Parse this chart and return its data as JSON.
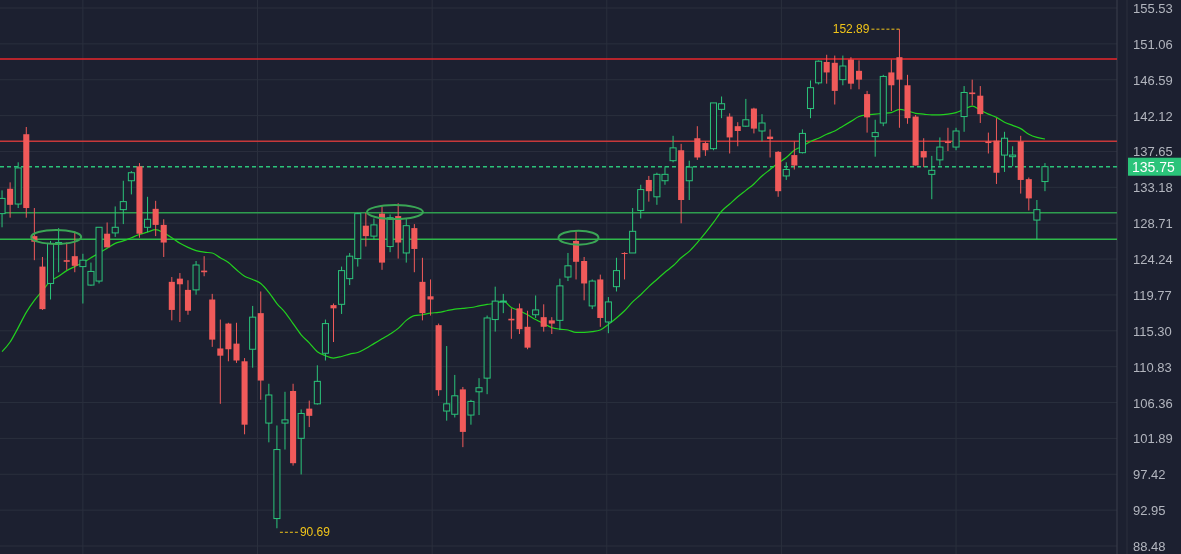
{
  "chart_data": {
    "type": "candlestick",
    "categories": [
      null,
      null,
      null,
      null,
      null,
      null,
      null,
      null,
      null,
      null,
      null,
      null,
      null,
      null,
      null,
      null,
      null,
      null,
      null,
      null,
      null,
      null,
      null,
      null,
      null,
      null,
      null,
      null,
      null,
      null,
      null,
      null,
      null,
      null,
      null,
      null,
      null,
      null,
      null,
      null,
      null,
      null,
      null,
      null,
      null,
      null,
      null,
      null,
      null,
      null,
      null,
      null,
      null,
      null,
      null,
      null,
      null,
      null,
      null,
      null,
      null,
      null,
      null,
      null,
      null,
      null,
      null,
      null,
      null,
      null,
      null,
      null,
      null,
      null,
      null,
      null,
      null,
      null,
      null,
      null,
      null,
      null,
      null,
      null,
      null,
      null,
      null,
      null,
      null,
      null,
      null,
      null,
      null,
      null,
      null,
      null,
      null,
      null,
      null,
      null,
      null,
      null,
      null,
      null,
      null,
      null,
      null,
      null,
      null,
      null,
      null,
      null,
      null,
      null,
      null,
      null,
      null,
      null,
      null,
      null,
      null,
      null,
      null,
      null,
      null,
      null,
      null,
      null,
      null,
      null
    ],
    "ohlc": [
      [
        129.9,
        132.8,
        128.2,
        131.8
      ],
      [
        133.0,
        133.8,
        129.4,
        131.0
      ],
      [
        131.1,
        136.3,
        130.6,
        135.6
      ],
      [
        139.8,
        140.7,
        129.4,
        130.6
      ],
      [
        127.1,
        130.6,
        124.1,
        126.4
      ],
      [
        123.3,
        124.5,
        117.9,
        118.0
      ],
      [
        121.2,
        126.5,
        119.2,
        126.2
      ],
      [
        126.1,
        128.1,
        122.6,
        126.3
      ],
      [
        124.1,
        126.3,
        122.9,
        123.9
      ],
      [
        124.6,
        127.7,
        122.6,
        123.4
      ],
      [
        123.3,
        124.9,
        118.7,
        124.1
      ],
      [
        121.0,
        123.8,
        120.9,
        122.7
      ],
      [
        121.5,
        128.2,
        121.2,
        128.2
      ],
      [
        127.4,
        128.8,
        125.7,
        125.7
      ],
      [
        127.5,
        130.8,
        127.0,
        128.2
      ],
      [
        130.4,
        134.0,
        128.6,
        131.4
      ],
      [
        134.0,
        135.2,
        132.3,
        135.0
      ],
      [
        135.8,
        136.2,
        126.9,
        127.4
      ],
      [
        128.2,
        132.0,
        127.6,
        129.2
      ],
      [
        130.5,
        131.5,
        127.1,
        128.5
      ],
      [
        128.5,
        129.2,
        124.5,
        126.3
      ],
      [
        121.4,
        122.0,
        116.6,
        117.9
      ],
      [
        121.8,
        122.5,
        116.4,
        121.1
      ],
      [
        120.4,
        121.6,
        117.3,
        117.8
      ],
      [
        120.4,
        124.0,
        119.8,
        123.5
      ],
      [
        122.8,
        124.6,
        122.1,
        122.6
      ],
      [
        119.2,
        119.9,
        113.3,
        114.2
      ],
      [
        113.1,
        116.7,
        106.2,
        112.2
      ],
      [
        116.2,
        116.3,
        111.5,
        113.0
      ],
      [
        113.7,
        116.3,
        111.3,
        111.6
      ],
      [
        111.5,
        111.9,
        102.4,
        103.6
      ],
      [
        113.0,
        118.4,
        110.7,
        117.0
      ],
      [
        117.5,
        120.2,
        106.7,
        109.1
      ],
      [
        103.8,
        108.7,
        101.4,
        107.3
      ],
      [
        91.9,
        103.5,
        90.69,
        100.5
      ],
      [
        103.8,
        107.7,
        100.5,
        104.2
      ],
      [
        107.8,
        108.7,
        98.5,
        98.8
      ],
      [
        101.9,
        105.5,
        97.4,
        105.0
      ],
      [
        105.6,
        106.6,
        103.3,
        104.7
      ],
      [
        106.2,
        111.0,
        106.1,
        109.0
      ],
      [
        112.5,
        116.7,
        111.6,
        116.2
      ],
      [
        118.5,
        118.7,
        113.9,
        118.1
      ],
      [
        118.6,
        123.3,
        117.4,
        122.8
      ],
      [
        121.8,
        125.0,
        121.0,
        124.6
      ],
      [
        124.3,
        130.0,
        123.3,
        129.9
      ],
      [
        128.4,
        130.0,
        125.8,
        127.1
      ],
      [
        127.1,
        129.3,
        126.7,
        128.5
      ],
      [
        129.9,
        130.8,
        122.9,
        123.8
      ],
      [
        125.8,
        129.8,
        125.1,
        129.4
      ],
      [
        129.6,
        131.2,
        124.3,
        126.3
      ],
      [
        125.0,
        129.3,
        123.8,
        128.4
      ],
      [
        128.1,
        128.6,
        122.6,
        125.5
      ],
      [
        121.4,
        124.4,
        116.6,
        117.5
      ],
      [
        119.6,
        121.7,
        117.2,
        119.2
      ],
      [
        116.0,
        116.2,
        107.2,
        107.9
      ],
      [
        105.3,
        113.4,
        104.1,
        106.2
      ],
      [
        104.9,
        109.8,
        104.5,
        107.2
      ],
      [
        108.0,
        108.3,
        100.8,
        102.7
      ],
      [
        104.8,
        106.7,
        103.6,
        106.5
      ],
      [
        107.7,
        109.4,
        104.8,
        108.2
      ],
      [
        109.4,
        117.2,
        107.4,
        116.9
      ],
      [
        116.7,
        120.8,
        115.2,
        119.0
      ],
      [
        118.9,
        119.9,
        117.5,
        119.0
      ],
      [
        116.8,
        118.1,
        114.3,
        116.6
      ],
      [
        118.1,
        118.7,
        114.9,
        115.5
      ],
      [
        115.8,
        117.8,
        113.0,
        113.2
      ],
      [
        117.3,
        119.7,
        116.9,
        117.9
      ],
      [
        117.0,
        118.6,
        115.2,
        115.8
      ],
      [
        116.6,
        117.0,
        114.9,
        116.2
      ],
      [
        116.6,
        121.8,
        115.4,
        120.9
      ],
      [
        122.0,
        125.0,
        121.5,
        123.4
      ],
      [
        126.5,
        127.7,
        121.7,
        123.9
      ],
      [
        124.0,
        124.5,
        119.1,
        121.2
      ],
      [
        118.4,
        121.7,
        118.0,
        121.5
      ],
      [
        121.7,
        122.3,
        115.8,
        116.9
      ],
      [
        116.4,
        119.5,
        115.0,
        118.9
      ],
      [
        120.8,
        124.4,
        120.2,
        122.8
      ],
      [
        125.0,
        125.1,
        121.7,
        124.9
      ],
      [
        125.0,
        130.6,
        125.0,
        127.7
      ],
      [
        130.3,
        133.5,
        129.3,
        132.9
      ],
      [
        134.1,
        134.6,
        131.4,
        132.7
      ],
      [
        132.0,
        135.0,
        131.0,
        134.8
      ],
      [
        134.0,
        135.8,
        133.5,
        134.8
      ],
      [
        136.5,
        139.6,
        136.3,
        138.1
      ],
      [
        137.8,
        138.6,
        128.7,
        131.6
      ],
      [
        134.0,
        136.5,
        131.6,
        135.7
      ],
      [
        139.3,
        140.8,
        136.6,
        136.9
      ],
      [
        138.7,
        138.9,
        137.1,
        137.8
      ],
      [
        138.0,
        143.7,
        137.8,
        143.7
      ],
      [
        142.9,
        144.5,
        141.8,
        143.6
      ],
      [
        142.0,
        142.4,
        137.4,
        139.4
      ],
      [
        140.8,
        141.3,
        138.3,
        140.2
      ],
      [
        140.8,
        144.2,
        140.7,
        141.6
      ],
      [
        143.0,
        143.1,
        139.9,
        140.5
      ],
      [
        140.2,
        142.3,
        138.9,
        141.2
      ],
      [
        139.5,
        140.4,
        136.9,
        139.2
      ],
      [
        137.6,
        137.7,
        132.0,
        132.7
      ],
      [
        134.6,
        136.3,
        134.1,
        135.4
      ],
      [
        137.2,
        138.9,
        135.4,
        135.9
      ],
      [
        137.5,
        140.4,
        137.4,
        139.9
      ],
      [
        143.0,
        146.5,
        141.8,
        145.6
      ],
      [
        146.2,
        149.0,
        146.0,
        148.9
      ],
      [
        148.8,
        149.7,
        146.1,
        147.5
      ],
      [
        148.7,
        149.6,
        143.5,
        145.2
      ],
      [
        146.6,
        149.6,
        145.9,
        148.3
      ],
      [
        149.1,
        149.4,
        145.4,
        146.1
      ],
      [
        147.7,
        149.0,
        145.4,
        146.6
      ],
      [
        144.8,
        145.2,
        140.0,
        141.9
      ],
      [
        139.5,
        141.6,
        137.0,
        140.0
      ],
      [
        141.2,
        147.2,
        140.8,
        147.0
      ],
      [
        147.5,
        149.1,
        142.7,
        145.9
      ],
      [
        149.4,
        152.89,
        140.6,
        146.6
      ],
      [
        145.9,
        147.2,
        141.1,
        141.8
      ],
      [
        142.0,
        142.2,
        135.9,
        135.9
      ],
      [
        137.7,
        139.3,
        135.7,
        136.9
      ],
      [
        134.8,
        137.1,
        131.7,
        135.3
      ],
      [
        136.6,
        139.4,
        135.9,
        138.2
      ],
      [
        138.9,
        140.6,
        137.7,
        138.7
      ],
      [
        138.2,
        140.6,
        137.8,
        140.2
      ],
      [
        142.0,
        145.8,
        140.1,
        145.0
      ],
      [
        145.0,
        146.6,
        143.4,
        144.8
      ],
      [
        144.6,
        145.8,
        141.2,
        142.3
      ],
      [
        138.9,
        140.0,
        137.4,
        138.7
      ],
      [
        139.0,
        141.8,
        133.6,
        135.0
      ],
      [
        137.2,
        140.1,
        135.1,
        139.3
      ],
      [
        137.0,
        138.3,
        135.8,
        137.2
      ],
      [
        138.9,
        139.6,
        132.4,
        134.1
      ],
      [
        134.2,
        134.4,
        130.3,
        131.8
      ],
      [
        129.1,
        131.6,
        126.7,
        130.4
      ],
      [
        133.9,
        136.2,
        132.7,
        135.75
      ]
    ],
    "colors": [
      "#2bc47a",
      "#f05a5a",
      "#2bc47a",
      "#f05a5a",
      "#f05a5a",
      "#f05a5a",
      "#2bc47a",
      "#2bc47a",
      "#f05a5a",
      "#f05a5a",
      "#2bc47a",
      "#2bc47a",
      "#2bc47a",
      "#f05a5a",
      "#2bc47a",
      "#2bc47a",
      "#2bc47a",
      "#f05a5a",
      "#2bc47a",
      "#f05a5a",
      "#f05a5a",
      "#f05a5a",
      "#f05a5a",
      "#f05a5a",
      "#2bc47a",
      "#f05a5a",
      "#f05a5a",
      "#f05a5a",
      "#f05a5a",
      "#f05a5a",
      "#f05a5a",
      "#2bc47a",
      "#f05a5a",
      "#2bc47a",
      "#2bc47a",
      "#2bc47a",
      "#f05a5a",
      "#2bc47a",
      "#f05a5a",
      "#2bc47a",
      "#2bc47a",
      "#f05a5a",
      "#2bc47a",
      "#2bc47a",
      "#2bc47a",
      "#f05a5a",
      "#2bc47a",
      "#f05a5a",
      "#2bc47a",
      "#f05a5a",
      "#2bc47a",
      "#f05a5a",
      "#f05a5a",
      "#f05a5a",
      "#f05a5a",
      "#2bc47a",
      "#2bc47a",
      "#f05a5a",
      "#2bc47a",
      "#2bc47a",
      "#2bc47a",
      "#2bc47a",
      "#2bc47a",
      "#f05a5a",
      "#f05a5a",
      "#f05a5a",
      "#2bc47a",
      "#f05a5a",
      "#f05a5a",
      "#2bc47a",
      "#2bc47a",
      "#f05a5a",
      "#f05a5a",
      "#2bc47a",
      "#f05a5a",
      "#2bc47a",
      "#2bc47a",
      "#f05a5a",
      "#2bc47a",
      "#2bc47a",
      "#f05a5a",
      "#2bc47a",
      "#2bc47a",
      "#2bc47a",
      "#f05a5a",
      "#2bc47a",
      "#f05a5a",
      "#f05a5a",
      "#2bc47a",
      "#2bc47a",
      "#f05a5a",
      "#f05a5a",
      "#2bc47a",
      "#f05a5a",
      "#2bc47a",
      "#f05a5a",
      "#f05a5a",
      "#2bc47a",
      "#f05a5a",
      "#2bc47a",
      "#2bc47a",
      "#2bc47a",
      "#f05a5a",
      "#f05a5a",
      "#2bc47a",
      "#f05a5a",
      "#f05a5a",
      "#f05a5a",
      "#2bc47a",
      "#2bc47a",
      "#f05a5a",
      "#f05a5a",
      "#f05a5a",
      "#f05a5a",
      "#f05a5a",
      "#2bc47a",
      "#2bc47a",
      "#f05a5a",
      "#2bc47a",
      "#2bc47a",
      "#f05a5a",
      "#f05a5a",
      "#f05a5a",
      "#f05a5a",
      "#2bc47a",
      "#2bc47a",
      "#f05a5a",
      "#f05a5a",
      "#2bc47a",
      "#2bc47a"
    ],
    "series": [
      {
        "type": "line",
        "color": "#22d11f",
        "values": [
          112.7,
          113.9,
          115.7,
          117.6,
          119.1,
          120.3,
          121.5,
          122.1,
          122.8,
          123.3,
          123.8,
          124.4,
          125.0,
          125.6,
          126.2,
          126.5,
          126.9,
          127.3,
          127.6,
          127.9,
          127.5,
          126.9,
          126.2,
          125.7,
          125.3,
          125.1,
          125.0,
          124.4,
          123.8,
          122.9,
          122.1,
          121.7,
          121.2,
          120.1,
          118.7,
          117.6,
          116.2,
          114.8,
          113.8,
          112.7,
          112.2,
          111.9,
          112.1,
          112.4,
          112.6,
          113.1,
          113.7,
          114.3,
          114.9,
          115.6,
          116.6,
          117.2,
          117.3,
          117.5,
          117.6,
          117.8,
          118.0,
          118.1,
          118.2,
          118.4,
          118.6,
          118.7,
          119.0,
          118.2,
          117.8,
          117.3,
          116.7,
          116.2,
          115.7,
          115.5,
          115.4,
          115.1,
          115.1,
          115.2,
          115.4,
          116.1,
          116.9,
          117.8,
          118.9,
          119.8,
          120.8,
          121.7,
          122.6,
          123.4,
          124.4,
          125.2,
          126.3,
          127.5,
          128.8,
          130.2,
          131.1,
          132.0,
          132.8,
          133.6,
          134.6,
          135.4,
          136.2,
          136.9,
          137.8,
          138.3,
          138.9,
          139.3,
          139.8,
          140.2,
          140.8,
          141.4,
          142.0,
          142.2,
          142.3,
          142.4,
          142.5,
          142.9,
          142.7,
          142.4,
          142.3,
          142.2,
          142.2,
          142.3,
          142.5,
          142.9,
          143.3,
          142.8,
          142.3,
          141.9,
          141.3,
          140.9,
          140.5,
          139.8,
          139.4,
          139.2
        ]
      }
    ],
    "ylim": [
      88.48,
      155.53
    ],
    "yticks": [
      155.53,
      151.06,
      146.59,
      142.12,
      137.65,
      133.18,
      128.71,
      124.24,
      119.77,
      {
        "value": 115.3,
        "label": "115.30"
      },
      110.83,
      106.36,
      101.89,
      97.42,
      92.95,
      88.48
    ],
    "tick_labels": "y",
    "grid": true,
    "ref_lines": [
      {
        "axis": "y",
        "value": 149.17,
        "color": "#e8262b",
        "line_style": "solid"
      },
      {
        "axis": "y",
        "value": 138.92,
        "color": "#c7383a",
        "line_style": "solid"
      },
      {
        "axis": "y",
        "value": 130.02,
        "color": "#2e9e4f",
        "line_style": "solid"
      },
      {
        "axis": "y",
        "value": 126.7,
        "color": "#2fb84a",
        "line_style": "solid"
      },
      {
        "axis": "y",
        "value": 135.75,
        "label": "135.75",
        "color": "#2bc47a",
        "line_style": "dashed"
      }
    ],
    "annotations": [
      "152.89",
      "90.69"
    ]
  }
}
